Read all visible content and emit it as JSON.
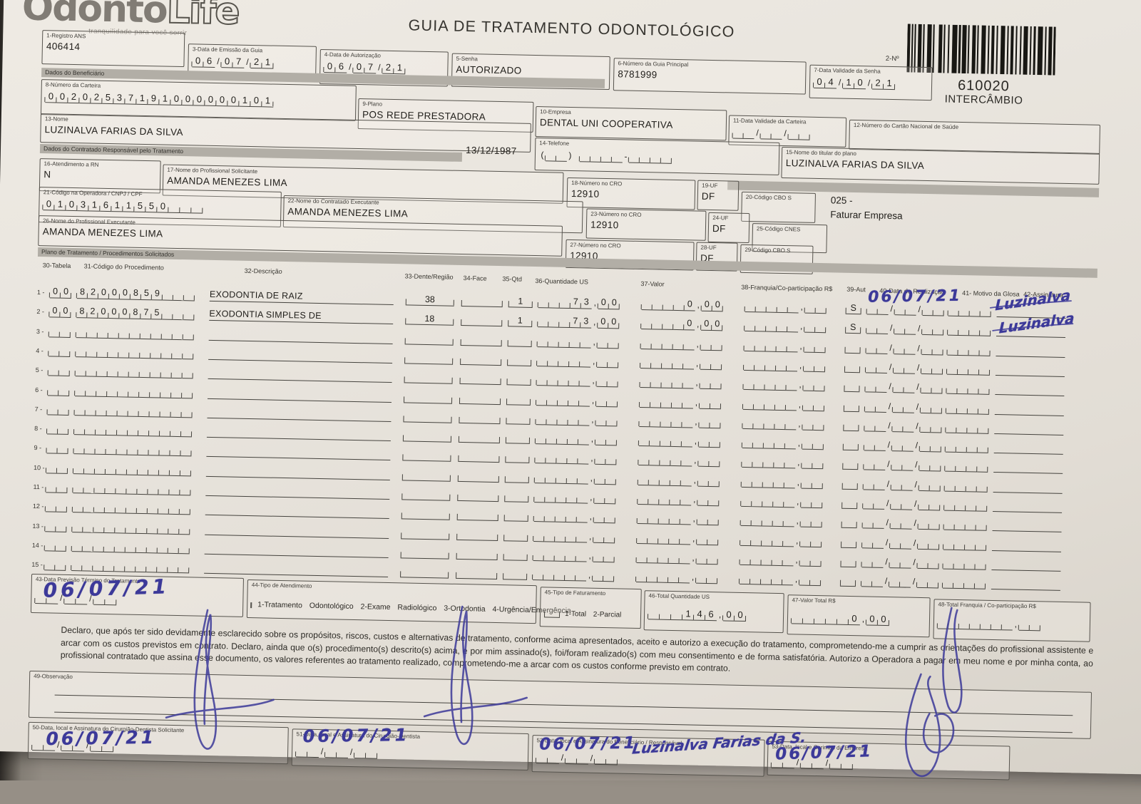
{
  "colors": {
    "hand_ink": "#3c3999",
    "paper": "#e9e5de",
    "section_bar": "#b2aea6"
  },
  "logo": {
    "part1": "Odonto",
    "part2": "Life",
    "tagline": "tranquilidade para você sorrir"
  },
  "title": "GUIA DE TRATAMENTO ODONTOLÓGICO",
  "barcode": {
    "label": "2-Nº",
    "number": "610020",
    "subtitle": "INTERCÂMBIO"
  },
  "sections": {
    "beneficiario": "Dados do Beneficiário",
    "contratado": "Dados do Contratado Responsável pelo Tratamento",
    "plano": "Plano de Tratamento / Procedimentos Solicitados"
  },
  "fields": {
    "f1": {
      "label": "1-Registro ANS",
      "value": "406414"
    },
    "f3": {
      "label": "3-Data de Emissão da Guia",
      "cells": [
        "0",
        "6",
        "/",
        "0",
        "7",
        "/",
        "2",
        "1"
      ]
    },
    "f4": {
      "label": "4-Data de Autorização",
      "cells": [
        "0",
        "6",
        "/",
        "0",
        "7",
        "/",
        "2",
        "1"
      ]
    },
    "f5": {
      "label": "5-Senha",
      "value": "AUTORIZADO"
    },
    "f6": {
      "label": "6-Número da Guia Principal",
      "value": "8781999"
    },
    "f7": {
      "label": "7-Data Validade da Senha",
      "cells": [
        "0",
        "4",
        "/",
        "1",
        "0",
        "/",
        "2",
        "1"
      ]
    },
    "f8": {
      "label": "8-Número da Carteira",
      "cells": [
        "0",
        "0",
        "2",
        "0",
        "2",
        "5",
        "3",
        "7",
        "1",
        "9",
        "1",
        "0",
        "0",
        "0",
        "0",
        "0",
        "0",
        "1",
        "0",
        "1"
      ]
    },
    "f9": {
      "label": "9-Plano",
      "value": "POS REDE PRESTADORA"
    },
    "f10": {
      "label": "10-Empresa",
      "value": "DENTAL UNI COOPERATIVA"
    },
    "f11": {
      "label": "11-Data Validade da Carteira",
      "cells": [
        "",
        "",
        "/",
        "",
        "",
        "/",
        "",
        ""
      ]
    },
    "f12": {
      "label": "12-Número do Cartão Nacional de Saúde",
      "value": ""
    },
    "f13": {
      "label": "13-Nome",
      "value": "LUZINALVA FARIAS DA SILVA",
      "birthdate": "13/12/1987"
    },
    "f14": {
      "label": "14-Telefone",
      "cells": [
        "(",
        "",
        "",
        ")",
        " ",
        "",
        "",
        "",
        "",
        "-",
        "",
        "",
        "",
        ""
      ]
    },
    "f15": {
      "label": "15-Nome do titular do plano",
      "value": "LUZINALVA FARIAS DA SILVA"
    },
    "f16": {
      "label": "16-Atendimento a RN",
      "value": "N"
    },
    "f17": {
      "label": "17-Nome do Profissional Solicitante",
      "value": "AMANDA MENEZES LIMA"
    },
    "f18": {
      "label": "18-Número no CRO",
      "value": "12910"
    },
    "f19": {
      "label": "19-UF",
      "value": "DF"
    },
    "f20": {
      "label": "20-Código CBO S",
      "value": ""
    },
    "f21": {
      "label": "21-Código na Operadora / CNPJ / CPF",
      "cells": [
        "0",
        "1",
        "0",
        "3",
        "1",
        "6",
        "1",
        "1",
        "5",
        "5",
        "0",
        "",
        "",
        ""
      ]
    },
    "f22": {
      "label": "22-Nome do Contratado Executante",
      "value": "AMANDA MENEZES LIMA"
    },
    "f23": {
      "label": "23-Número no CRO",
      "value": "12910"
    },
    "f24": {
      "label": "24-UF",
      "value": "DF"
    },
    "f25": {
      "label": "25-Código CNES",
      "value": ""
    },
    "f26": {
      "label": "26-Nome do Profissional Executante",
      "value": "AMANDA MENEZES LIMA"
    },
    "f27": {
      "label": "27-Número no CRO",
      "value": "12910"
    },
    "f28": {
      "label": "28-UF",
      "value": "DF"
    },
    "f29": {
      "label": "29-Código CBO S",
      "value": ""
    },
    "f43": {
      "label": "43-Data Previsão Término do Tratamento",
      "cells": [
        "",
        "",
        "/",
        "",
        "",
        "/",
        "",
        ""
      ]
    },
    "f44": {
      "label": "44-Tipo de Atendimento",
      "options": "1-Tratamento Odontológico 2-Exame Radiológico 3-Ortodontia 4-Urgência/Emergência"
    },
    "f45": {
      "label": "45-Tipo de Faturamento",
      "options": "1-Total 2-Parcial"
    },
    "f46": {
      "label": "46-Total Quantidade US",
      "cells": [
        "",
        "",
        "",
        "1",
        "4",
        "6",
        ",",
        "0",
        "0"
      ]
    },
    "f47": {
      "label": "47-Valor Total R$",
      "cells": [
        "",
        "",
        "",
        "",
        "",
        "0",
        ",",
        "0",
        "0"
      ]
    },
    "f48": {
      "label": "48-Total Franquia / Co-participação R$",
      "cells": [
        "",
        "",
        "",
        "",
        "",
        "",
        "",
        ",",
        "",
        ""
      ]
    },
    "f49": {
      "label": "49-Observação"
    },
    "f50": {
      "label": "50-Data, local e Assinatura do Cirurgião-Dentista Solicitante",
      "cells": [
        "",
        "",
        "/",
        "",
        "",
        "/",
        "",
        ""
      ]
    },
    "f51": {
      "label": "51-Data, local e Assinatura do Cirurgião-Dentista",
      "cells": [
        "",
        "",
        "/",
        "",
        "",
        "/",
        "",
        ""
      ]
    },
    "f52": {
      "label": "52-Data, local e Assinatura do Beneficiário / Responsável",
      "cells": [
        "",
        "",
        "/",
        "",
        "",
        "/",
        "",
        ""
      ]
    },
    "f53": {
      "label": "53-Data, local e Carimbo da Empresa",
      "cells": [
        "",
        "",
        "/",
        "",
        "",
        "/",
        "",
        ""
      ]
    }
  },
  "note_faturar": {
    "line1": "025 -",
    "line2": "Faturar Empresa"
  },
  "table": {
    "headers": [
      "30-Tabela",
      "31-Código do Procedimento",
      "32-Descrição",
      "33-Dente/Região",
      "34-Face",
      "35-Qtd",
      "36-Quantidade US",
      "37-Valor",
      "38-Franquia/Co-participação R$",
      "39-Aut",
      "40-Data de Realização",
      "41- Motivo da Glosa",
      "42-Assinatura"
    ],
    "row_count": 15,
    "empty_row": {
      "tabela": [
        "",
        ""
      ],
      "codigo": [
        "",
        "",
        "",
        "",
        "",
        "",
        "",
        "",
        "",
        "",
        ""
      ],
      "desc": "",
      "dente": "",
      "face": "",
      "qtd": "",
      "qus": [
        "",
        "",
        "",
        "",
        "",
        ",",
        "",
        ""
      ],
      "valor": [
        "",
        "",
        "",
        "",
        "",
        ",",
        "",
        ""
      ],
      "franquia": [
        "",
        "",
        "",
        "",
        "",
        ",",
        "",
        ""
      ],
      "aut": "",
      "data": [
        "",
        "",
        "/",
        "",
        "",
        "/",
        "",
        ""
      ],
      "motivo": [
        "",
        "",
        "",
        ""
      ]
    },
    "rows": [
      {
        "tabela": [
          "0",
          "0"
        ],
        "codigo": [
          "8",
          "2",
          "0",
          "0",
          "0",
          "8",
          "5",
          "9",
          "",
          "",
          ""
        ],
        "desc": "EXODONTIA DE RAIZ",
        "dente": "38",
        "face": "",
        "qtd": "1",
        "qus": [
          "",
          "",
          "",
          "7",
          "3",
          ",",
          "0",
          "0"
        ],
        "valor": [
          "",
          "",
          "",
          "",
          "0",
          ",",
          "0",
          "0"
        ],
        "franquia": [
          "",
          "",
          "",
          "",
          "",
          ",",
          "",
          ""
        ],
        "aut": "S",
        "data": [
          "",
          "",
          "/",
          "",
          "",
          "/",
          "",
          ""
        ],
        "motivo": [
          "",
          "",
          "",
          ""
        ]
      },
      {
        "tabela": [
          "0",
          "0"
        ],
        "codigo": [
          "8",
          "2",
          "0",
          "0",
          "0",
          "8",
          "7",
          "5",
          "",
          "",
          ""
        ],
        "desc": "EXODONTIA SIMPLES DE",
        "dente": "18",
        "face": "",
        "qtd": "1",
        "qus": [
          "",
          "",
          "",
          "7",
          "3",
          ",",
          "0",
          "0"
        ],
        "valor": [
          "",
          "",
          "",
          "",
          "0",
          ",",
          "0",
          "0"
        ],
        "franquia": [
          "",
          "",
          "",
          "",
          "",
          ",",
          "",
          ""
        ],
        "aut": "S",
        "data": [
          "",
          "",
          "/",
          "",
          "",
          "/",
          "",
          ""
        ],
        "motivo": [
          "",
          "",
          "",
          ""
        ]
      }
    ]
  },
  "declaration": "Declaro, que após ter sido devidamente esclarecido sobre os propósitos, riscos, custos e alternativas de tratamento, conforme acima apresentados, aceito e autorizo a execução do tratamento, comprometendo-me a cumprir as orientações do profissional assistente e arcar com os custos previstos em contrato. Declaro, ainda que o(s) procedimento(s) descrito(s) acima, e por mim assinado(s), foi/foram realizado(s) com meu consentimento e de forma satisfatória. Autorizo a Operadora a pagar em meu nome e por minha conta, ao profissional contratado que assina esse documento, os valores referentes ao tratamento realizado, comprometendo-me a arcar com os custos conforme previsto em contrato.",
  "handwriting": {
    "row1_date": "06/07/21",
    "row1_sig": "Luzinalva",
    "row2_sig": "Luzinalva",
    "f43_date": "06/07/21",
    "f50_date": "06/07/21",
    "f51_date": "06/07/21",
    "f52_date": "06/07/21",
    "f52_name": "Luzinalva Farias da S.",
    "f53_date": "06/07/21"
  }
}
